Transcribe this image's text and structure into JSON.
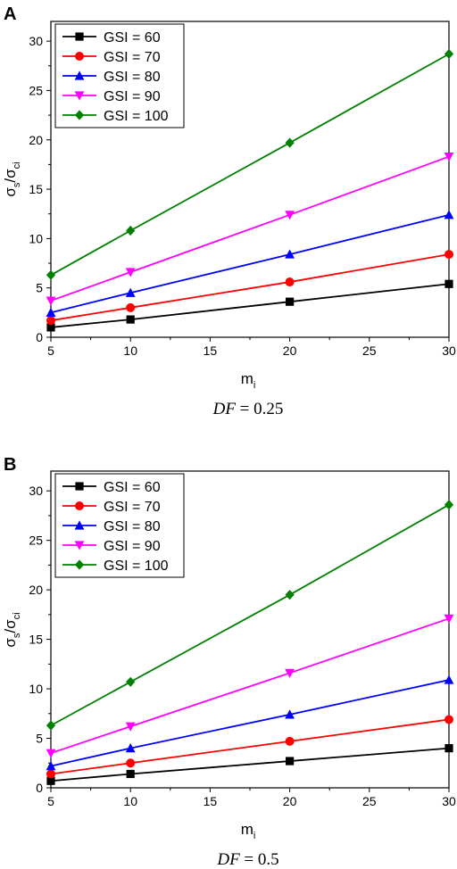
{
  "chart_data": [
    {
      "type": "line",
      "panel_label": "A",
      "caption_var": "DF",
      "caption_rest": " = 0.25",
      "xlabel_base": "m",
      "xlabel_sub": "i",
      "ylabel_num": "σ",
      "ylabel_num_sub": "s",
      "ylabel_slash": "/",
      "ylabel_den": "σ",
      "ylabel_den_sub": "ci",
      "xlim": [
        5,
        30
      ],
      "ylim": [
        0,
        32
      ],
      "xticks": [
        5,
        10,
        15,
        20,
        25,
        30
      ],
      "yticks": [
        0,
        5,
        10,
        15,
        20,
        25,
        30
      ],
      "x": [
        5,
        10,
        20,
        30
      ],
      "legend_position": "top-left",
      "grid": false,
      "series": [
        {
          "name": "GSI = 60",
          "color": "#000000",
          "marker": "square",
          "values": [
            1.0,
            1.8,
            3.6,
            5.4
          ]
        },
        {
          "name": "GSI = 70",
          "color": "#ff0000",
          "marker": "circle",
          "values": [
            1.7,
            3.0,
            5.6,
            8.4
          ]
        },
        {
          "name": "GSI = 80",
          "color": "#0000ff",
          "marker": "triangle-up",
          "values": [
            2.5,
            4.5,
            8.4,
            12.4
          ]
        },
        {
          "name": "GSI = 90",
          "color": "#ff00ff",
          "marker": "triangle-down",
          "values": [
            3.7,
            6.6,
            12.4,
            18.3
          ]
        },
        {
          "name": "GSI = 100",
          "color": "#008000",
          "marker": "diamond",
          "values": [
            6.3,
            10.8,
            19.7,
            28.7
          ]
        }
      ]
    },
    {
      "type": "line",
      "panel_label": "B",
      "caption_var": "DF",
      "caption_rest": " = 0.5",
      "xlabel_base": "m",
      "xlabel_sub": "i",
      "ylabel_num": "σ",
      "ylabel_num_sub": "s",
      "ylabel_slash": "/",
      "ylabel_den": "σ",
      "ylabel_den_sub": "ci",
      "xlim": [
        5,
        30
      ],
      "ylim": [
        0,
        32
      ],
      "xticks": [
        5,
        10,
        15,
        20,
        25,
        30
      ],
      "yticks": [
        0,
        5,
        10,
        15,
        20,
        25,
        30
      ],
      "x": [
        5,
        10,
        20,
        30
      ],
      "legend_position": "top-left",
      "grid": false,
      "series": [
        {
          "name": "GSI = 60",
          "color": "#000000",
          "marker": "square",
          "values": [
            0.7,
            1.4,
            2.7,
            4.0
          ]
        },
        {
          "name": "GSI = 70",
          "color": "#ff0000",
          "marker": "circle",
          "values": [
            1.4,
            2.5,
            4.7,
            6.9
          ]
        },
        {
          "name": "GSI = 80",
          "color": "#0000ff",
          "marker": "triangle-up",
          "values": [
            2.2,
            4.0,
            7.4,
            10.9
          ]
        },
        {
          "name": "GSI = 90",
          "color": "#ff00ff",
          "marker": "triangle-down",
          "values": [
            3.5,
            6.2,
            11.6,
            17.1
          ]
        },
        {
          "name": "GSI = 100",
          "color": "#008000",
          "marker": "diamond",
          "values": [
            6.3,
            10.7,
            19.5,
            28.6
          ]
        }
      ]
    }
  ]
}
